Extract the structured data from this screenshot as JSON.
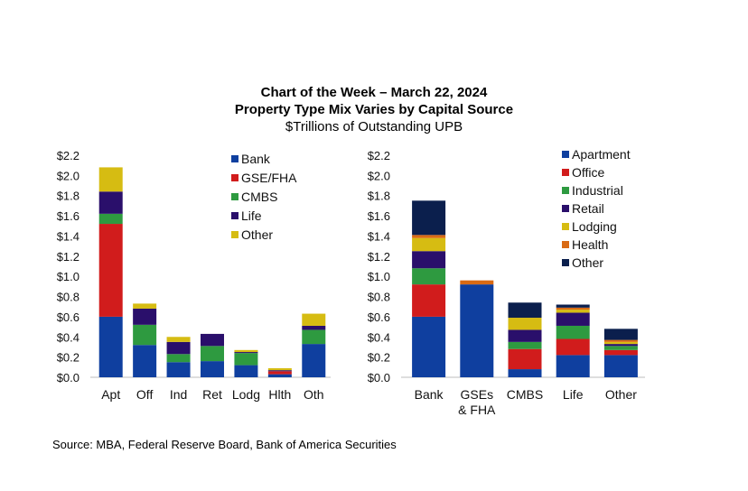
{
  "header": {
    "title": "Chart of the Week – March 22, 2024",
    "subtitle": "Property Type Mix Varies by Capital Source",
    "units": "$Trillions of Outstanding UPB"
  },
  "source": "Source: MBA, Federal Reserve Board, Bank of America Securities",
  "chart_data": [
    {
      "type": "bar",
      "stacked": true,
      "title": "",
      "xlabel": "",
      "ylabel": "",
      "ylim": [
        0,
        2.2
      ],
      "yticks": [
        "$0.0",
        "$0.2",
        "$0.4",
        "$0.6",
        "$0.8",
        "$1.0",
        "$1.2",
        "$1.4",
        "$1.6",
        "$1.8",
        "$2.0",
        "$2.2"
      ],
      "legend_position": "top-right",
      "categories": [
        "Apt",
        "Off",
        "Ind",
        "Ret",
        "Lodg",
        "Hlth",
        "Oth"
      ],
      "series": [
        {
          "name": "Bank",
          "color": "#0f3f9f",
          "values": [
            0.6,
            0.32,
            0.15,
            0.16,
            0.12,
            0.03,
            0.33
          ]
        },
        {
          "name": "GSE/FHA",
          "color": "#d11c1c",
          "values": [
            0.92,
            0.0,
            0.0,
            0.0,
            0.0,
            0.03,
            0.0
          ]
        },
        {
          "name": "CMBS",
          "color": "#2e9a40",
          "values": [
            0.1,
            0.2,
            0.08,
            0.15,
            0.12,
            0.0,
            0.14
          ]
        },
        {
          "name": "Life",
          "color": "#2a0f6b",
          "values": [
            0.22,
            0.16,
            0.12,
            0.12,
            0.01,
            0.01,
            0.04
          ]
        },
        {
          "name": "Other",
          "color": "#d6bc12",
          "values": [
            0.24,
            0.05,
            0.05,
            0.0,
            0.02,
            0.02,
            0.12
          ]
        }
      ]
    },
    {
      "type": "bar",
      "stacked": true,
      "title": "",
      "xlabel": "",
      "ylabel": "",
      "ylim": [
        0,
        2.2
      ],
      "yticks": [
        "$0.0",
        "$0.2",
        "$0.4",
        "$0.6",
        "$0.8",
        "$1.0",
        "$1.2",
        "$1.4",
        "$1.6",
        "$1.8",
        "$2.0",
        "$2.2"
      ],
      "legend_position": "top-right",
      "categories": [
        "Bank",
        "GSEs\n& FHA",
        "CMBS",
        "Life",
        "Other"
      ],
      "series": [
        {
          "name": "Apartment",
          "color": "#0f3f9f",
          "values": [
            0.6,
            0.92,
            0.08,
            0.22,
            0.22
          ]
        },
        {
          "name": "Office",
          "color": "#d11c1c",
          "values": [
            0.32,
            0.0,
            0.2,
            0.16,
            0.05
          ]
        },
        {
          "name": "Industrial",
          "color": "#2e9a40",
          "values": [
            0.16,
            0.0,
            0.07,
            0.13,
            0.04
          ]
        },
        {
          "name": "Retail",
          "color": "#2a0f6b",
          "values": [
            0.17,
            0.0,
            0.12,
            0.13,
            0.02
          ]
        },
        {
          "name": "Lodging",
          "color": "#d6bc12",
          "values": [
            0.13,
            0.0,
            0.12,
            0.03,
            0.02
          ]
        },
        {
          "name": "Health",
          "color": "#d96a14",
          "values": [
            0.03,
            0.04,
            0.0,
            0.02,
            0.02
          ]
        },
        {
          "name": "Other",
          "color": "#0b1f4d",
          "values": [
            0.34,
            0.0,
            0.15,
            0.03,
            0.11
          ]
        }
      ]
    }
  ]
}
